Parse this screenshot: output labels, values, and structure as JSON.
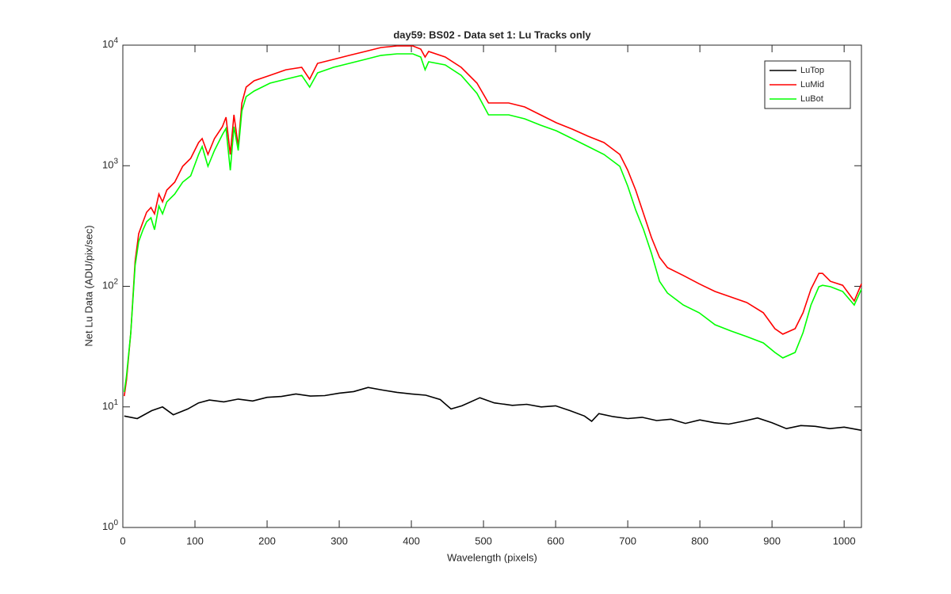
{
  "chart_data": {
    "type": "line",
    "title": "day59: BS02 - Data set 1: Lu Tracks only",
    "xlabel": "Wavelength (pixels)",
    "ylabel": "Net Lu Data (ADU/pix/sec)",
    "xlim": [
      0,
      1024
    ],
    "xticks": [
      0,
      100,
      200,
      300,
      400,
      500,
      600,
      700,
      800,
      900,
      1000
    ],
    "ylim": [
      1,
      10000
    ],
    "log_y": true,
    "yticks": [
      {
        "value": 1,
        "label": "10",
        "exponent": "0"
      },
      {
        "value": 10,
        "label": "10",
        "exponent": "1"
      },
      {
        "value": 100,
        "label": "10",
        "exponent": "2"
      },
      {
        "value": 1000,
        "label": "10",
        "exponent": "3"
      },
      {
        "value": 10000,
        "label": "10",
        "exponent": "4"
      }
    ],
    "grid": false,
    "legend": "top-right",
    "series": [
      {
        "name": "LuTop",
        "color": "#000000",
        "x": [
          2,
          20,
          40,
          55,
          70,
          90,
          105,
          120,
          140,
          160,
          180,
          200,
          220,
          240,
          260,
          280,
          300,
          320,
          340,
          360,
          380,
          400,
          420,
          440,
          455,
          470,
          495,
          515,
          540,
          560,
          580,
          600,
          620,
          640,
          650,
          660,
          680,
          700,
          720,
          740,
          760,
          780,
          800,
          820,
          840,
          860,
          880,
          900,
          920,
          940,
          960,
          980,
          1000,
          1024
        ],
        "values": [
          8.4,
          8.0,
          9.3,
          10,
          8.6,
          9.6,
          10.8,
          11.4,
          11,
          11.6,
          11.2,
          12,
          12.2,
          12.8,
          12.3,
          12.4,
          13,
          13.4,
          14.5,
          13.8,
          13.2,
          12.8,
          12.5,
          11.5,
          9.6,
          10.2,
          11.9,
          10.8,
          10.3,
          10.5,
          10,
          10.2,
          9.3,
          8.4,
          7.6,
          8.8,
          8.3,
          8.0,
          8.2,
          7.7,
          7.9,
          7.3,
          7.8,
          7.4,
          7.2,
          7.6,
          8.1,
          7.4,
          6.6,
          7.0,
          6.9,
          6.6,
          6.8,
          6.4
        ]
      },
      {
        "name": "LuMid",
        "color": "#ff0000",
        "x": [
          2,
          5,
          11,
          17,
          22,
          28,
          33,
          39,
          44,
          50,
          55,
          61,
          72,
          83,
          94,
          105,
          110,
          118,
          127,
          138,
          143,
          149,
          154,
          160,
          165,
          171,
          182,
          204,
          226,
          248,
          259,
          270,
          292,
          314,
          336,
          358,
          380,
          402,
          413,
          419,
          424,
          447,
          469,
          491,
          507,
          535,
          557,
          579,
          601,
          623,
          645,
          667,
          689,
          700,
          711,
          722,
          733,
          744,
          755,
          777,
          799,
          821,
          843,
          865,
          888,
          904,
          915,
          932,
          943,
          954,
          965,
          970,
          981,
          998,
          1014,
          1024
        ],
        "values": [
          12.3,
          16.7,
          41,
          161,
          273,
          343,
          411,
          450,
          399,
          582,
          501,
          628,
          731,
          988,
          1150,
          1556,
          1679,
          1241,
          1679,
          2105,
          2525,
          1241,
          2642,
          1443,
          3317,
          4487,
          5061,
          5624,
          6252,
          6548,
          5222,
          7066,
          7622,
          8222,
          8857,
          9554,
          9849,
          9849,
          9276,
          7967,
          8857,
          7967,
          6548,
          4840,
          3317,
          3317,
          3075,
          2642,
          2270,
          2013,
          1757,
          1556,
          1241,
          917,
          628,
          399,
          253,
          174,
          143,
          123,
          105,
          90.6,
          81.5,
          73.3,
          60.3,
          44.5,
          40.1,
          44.5,
          60.3,
          94.8,
          128,
          128,
          110,
          102,
          75.6,
          105
        ]
      },
      {
        "name": "LuBot",
        "color": "#00ff00",
        "x": [
          2,
          5,
          11,
          17,
          22,
          28,
          33,
          39,
          44,
          50,
          55,
          61,
          72,
          83,
          94,
          105,
          110,
          118,
          127,
          138,
          143,
          149,
          154,
          160,
          165,
          171,
          182,
          204,
          226,
          248,
          259,
          270,
          292,
          314,
          336,
          358,
          380,
          402,
          413,
          419,
          424,
          447,
          469,
          491,
          507,
          535,
          557,
          579,
          601,
          623,
          645,
          667,
          689,
          700,
          711,
          722,
          733,
          744,
          755,
          777,
          799,
          821,
          843,
          865,
          888,
          904,
          915,
          932,
          943,
          954,
          965,
          970,
          981,
          998,
          1014,
          1024
        ],
        "values": [
          13.3,
          18,
          41,
          149,
          235,
          295,
          343,
          370,
          295,
          464,
          399,
          501,
          582,
          731,
          825,
          1241,
          1443,
          988,
          1337,
          1811,
          2043,
          917,
          2105,
          1337,
          2851,
          3741,
          4158,
          4840,
          5222,
          5624,
          4487,
          5889,
          6548,
          7066,
          7622,
          8222,
          8468,
          8468,
          7967,
          6252,
          7280,
          6854,
          5624,
          3974,
          2642,
          2642,
          2449,
          2171,
          1950,
          1679,
          1443,
          1241,
          988,
          677,
          430,
          295,
          187,
          110,
          88,
          70,
          60.3,
          48,
          42.6,
          38.3,
          33.9,
          28.3,
          25.5,
          28.3,
          41.3,
          70,
          99.3,
          102,
          99.3,
          90.6,
          70,
          94.8
        ]
      }
    ]
  }
}
